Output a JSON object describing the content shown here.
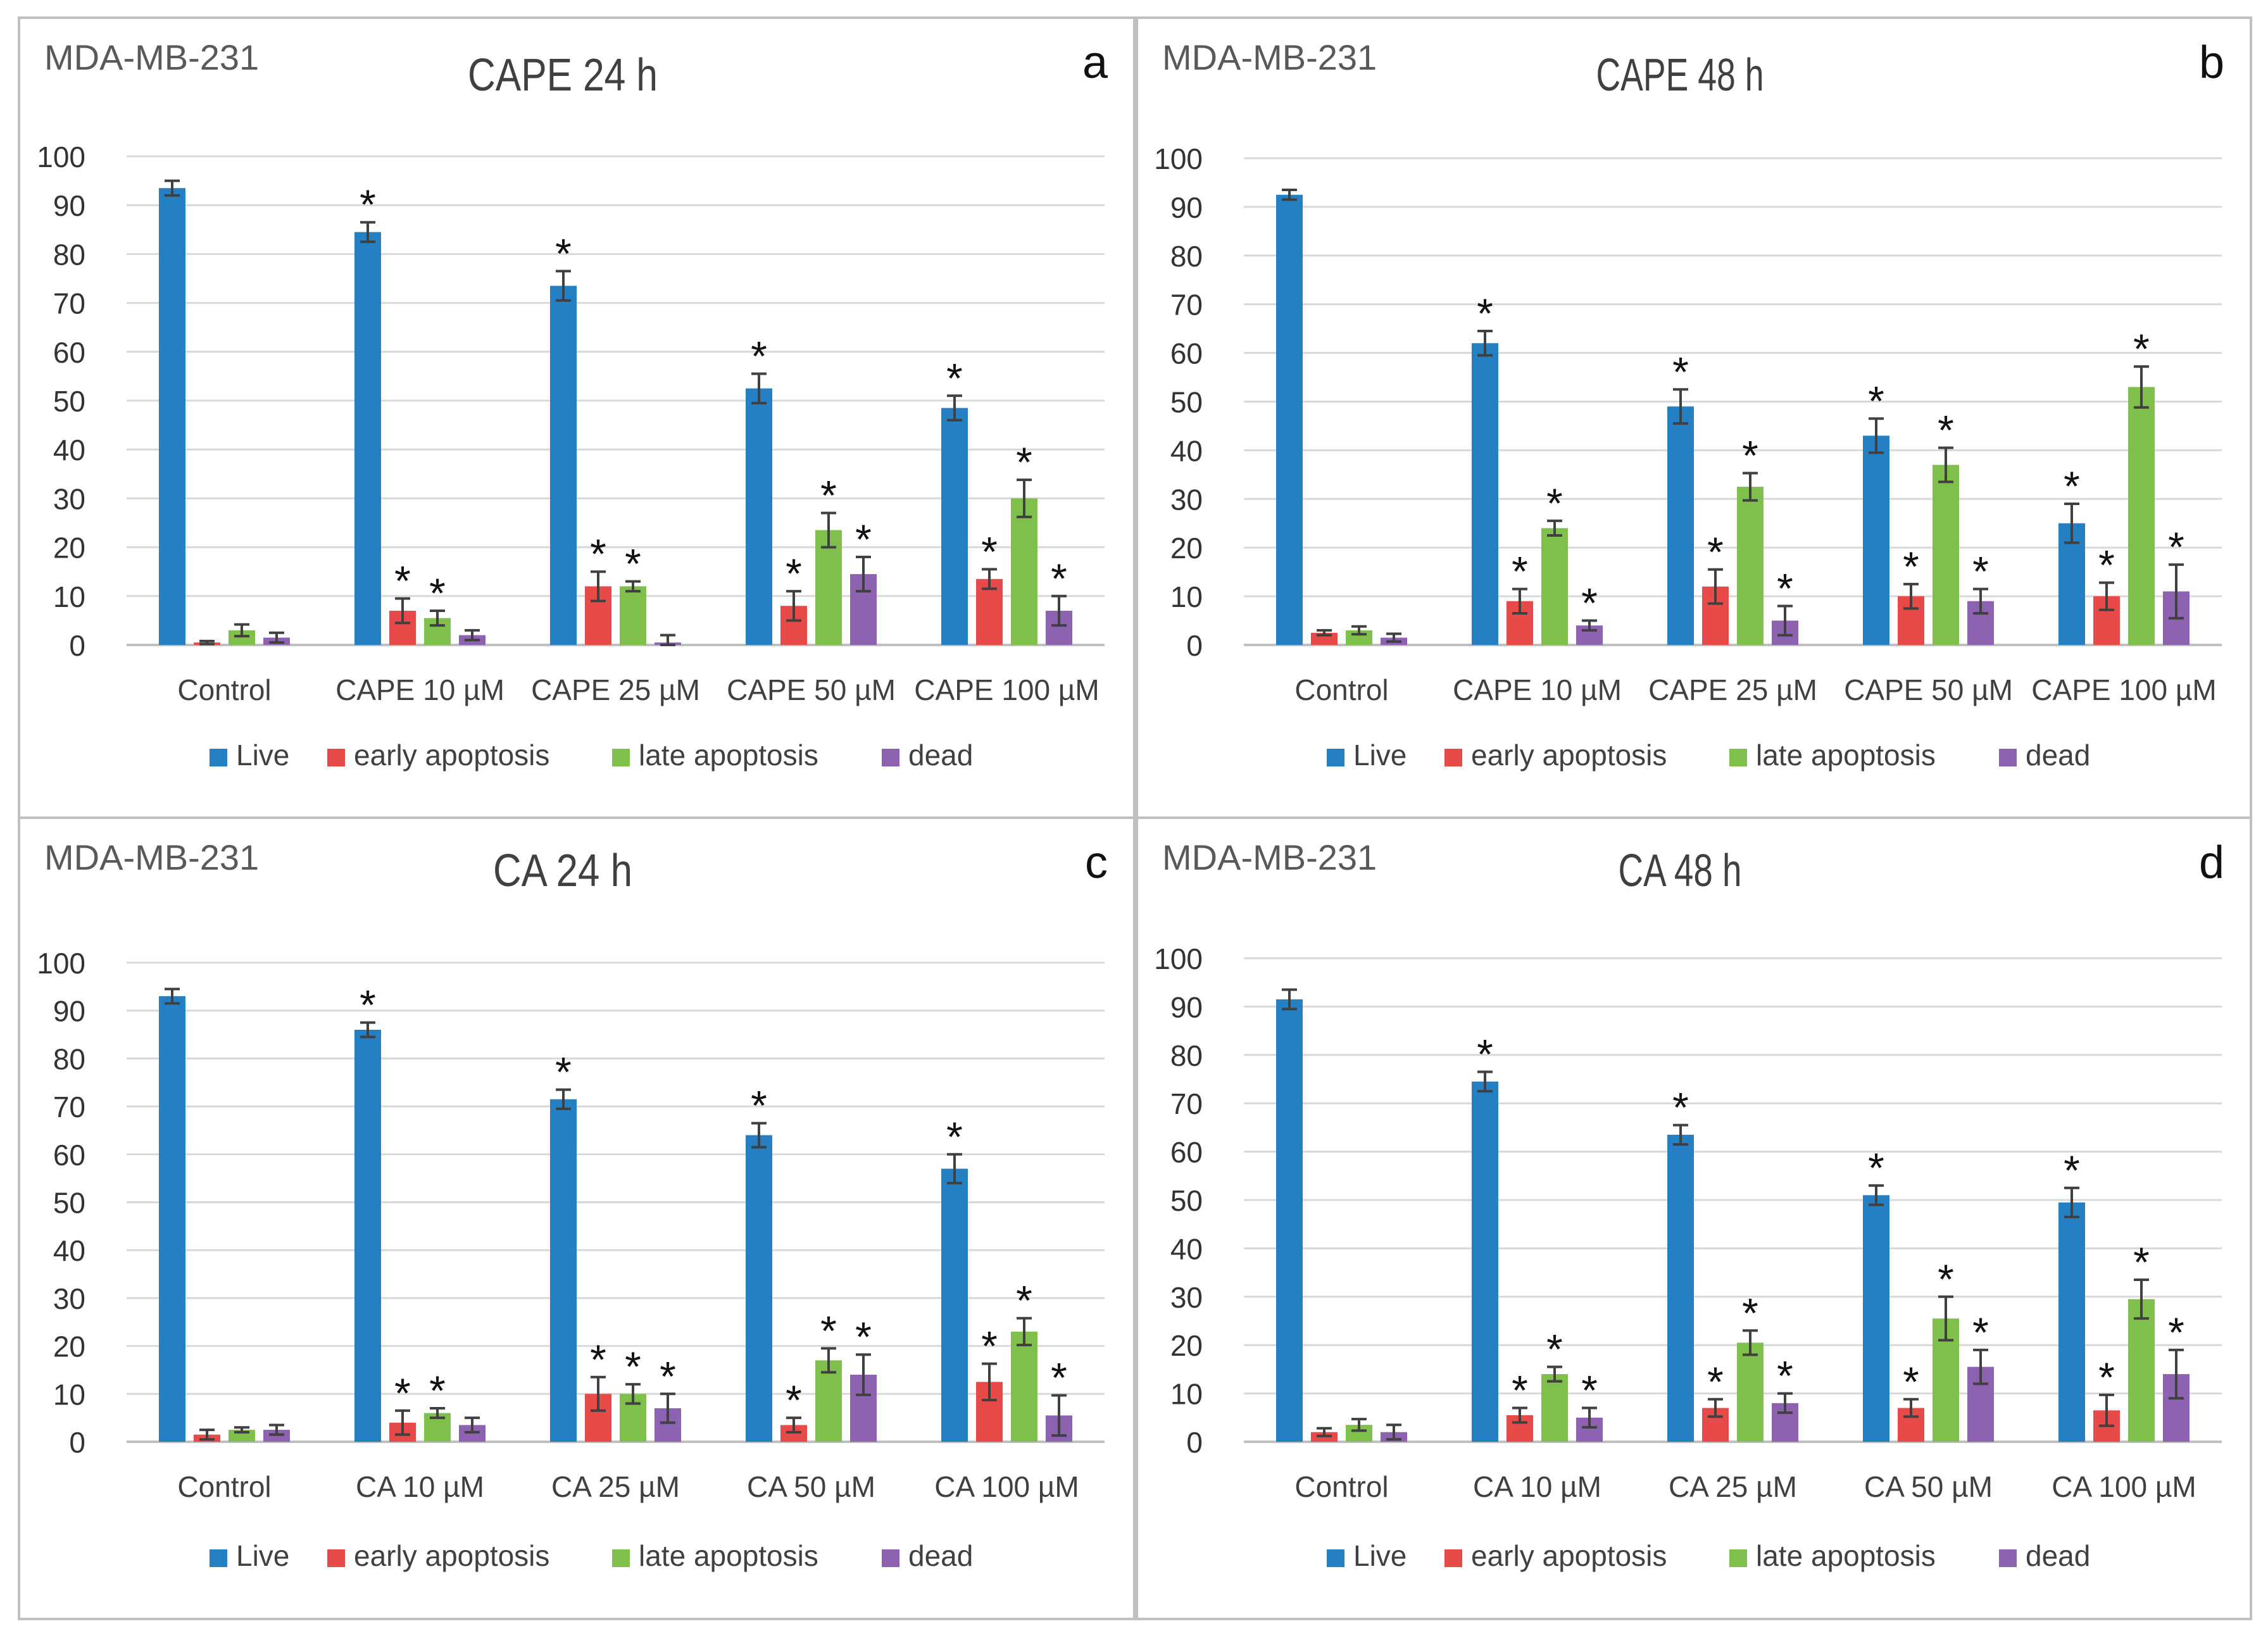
{
  "figure": {
    "panels": [
      {
        "cell_line": "MDA-MB-231",
        "title": "CAPE 24 h",
        "letter": "a"
      },
      {
        "cell_line": "MDA-MB-231",
        "title": "CAPE 48 h",
        "letter": "b"
      },
      {
        "cell_line": "MDA-MB-231",
        "title": "CA 24 h",
        "letter": "c"
      },
      {
        "cell_line": "MDA-MB-231",
        "title": "CA 48 h",
        "letter": "d"
      }
    ]
  },
  "colors": {
    "Live": "#2580C3",
    "early apoptosis": "#E84A4A",
    "late apoptosis": "#7FBF4C",
    "dead": "#8D62B0",
    "error_bar": "#404040",
    "grid": "#D9D9D9",
    "panel_border": "#BFBFBF",
    "text": "#595959",
    "asterisk": "#111111"
  },
  "chart_data": [
    {
      "type": "bar",
      "title": "CAPE 24 h",
      "cell_line": "MDA-MB-231",
      "panel": "a",
      "categories": [
        "Control",
        "CAPE 10 µM",
        "CAPE 25 µM",
        "CAPE 50 µM",
        "CAPE 100 µM"
      ],
      "ylim": [
        0,
        100
      ],
      "yticks": [
        0,
        10,
        20,
        30,
        40,
        50,
        60,
        70,
        80,
        90,
        100
      ],
      "legend_position": "bottom",
      "series": [
        {
          "name": "Live",
          "values": [
            93.5,
            84.5,
            73.5,
            52.5,
            48.5
          ],
          "errors": [
            1.5,
            2.0,
            3.0,
            3.0,
            2.5
          ],
          "significant": [
            false,
            true,
            true,
            true,
            true
          ]
        },
        {
          "name": "early apoptosis",
          "values": [
            0.5,
            7.0,
            12.0,
            8.0,
            13.5
          ],
          "errors": [
            0.3,
            2.5,
            3.0,
            3.0,
            2.0
          ],
          "significant": [
            false,
            true,
            true,
            true,
            true
          ]
        },
        {
          "name": "late apoptosis",
          "values": [
            3.0,
            5.5,
            12.0,
            23.5,
            30.0
          ],
          "errors": [
            1.2,
            1.5,
            1.0,
            3.5,
            3.8
          ],
          "significant": [
            false,
            true,
            true,
            true,
            true
          ]
        },
        {
          "name": "dead",
          "values": [
            1.5,
            2.0,
            0.5,
            14.5,
            7.0
          ],
          "errors": [
            1.0,
            1.0,
            1.5,
            3.5,
            3.0
          ],
          "significant": [
            false,
            false,
            false,
            true,
            true
          ]
        }
      ]
    },
    {
      "type": "bar",
      "title": "CAPE 48 h",
      "cell_line": "MDA-MB-231",
      "panel": "b",
      "categories": [
        "Control",
        "CAPE 10 µM",
        "CAPE 25 µM",
        "CAPE 50 µM",
        "CAPE 100 µM"
      ],
      "ylim": [
        0,
        100
      ],
      "yticks": [
        0,
        10,
        20,
        30,
        40,
        50,
        60,
        70,
        80,
        90,
        100
      ],
      "legend_position": "bottom",
      "series": [
        {
          "name": "Live",
          "values": [
            92.5,
            62.0,
            49.0,
            43.0,
            25.0
          ],
          "errors": [
            1.0,
            2.5,
            3.5,
            3.5,
            4.0
          ],
          "significant": [
            false,
            true,
            true,
            true,
            true
          ]
        },
        {
          "name": "early apoptosis",
          "values": [
            2.5,
            9.0,
            12.0,
            10.0,
            10.0
          ],
          "errors": [
            0.5,
            2.5,
            3.5,
            2.5,
            2.8
          ],
          "significant": [
            false,
            true,
            true,
            true,
            true
          ]
        },
        {
          "name": "late apoptosis",
          "values": [
            3.0,
            24.0,
            32.5,
            37.0,
            53.0
          ],
          "errors": [
            0.8,
            1.5,
            2.8,
            3.5,
            4.2
          ],
          "significant": [
            false,
            true,
            true,
            true,
            true
          ]
        },
        {
          "name": "dead",
          "values": [
            1.5,
            4.0,
            5.0,
            9.0,
            11.0
          ],
          "errors": [
            0.8,
            1.0,
            3.0,
            2.5,
            5.5
          ],
          "significant": [
            false,
            true,
            true,
            true,
            true
          ]
        }
      ]
    },
    {
      "type": "bar",
      "title": "CA 24 h",
      "cell_line": "MDA-MB-231",
      "panel": "c",
      "categories": [
        "Control",
        "CA 10 µM",
        "CA 25 µM",
        "CA 50 µM",
        "CA 100 µM"
      ],
      "ylim": [
        0,
        100
      ],
      "yticks": [
        0,
        10,
        20,
        30,
        40,
        50,
        60,
        70,
        80,
        90,
        100
      ],
      "legend_position": "bottom",
      "series": [
        {
          "name": "Live",
          "values": [
            93.0,
            86.0,
            71.5,
            64.0,
            57.0
          ],
          "errors": [
            1.5,
            1.5,
            2.0,
            2.5,
            3.0
          ],
          "significant": [
            false,
            true,
            true,
            true,
            true
          ]
        },
        {
          "name": "early apoptosis",
          "values": [
            1.5,
            4.0,
            10.0,
            3.5,
            12.5
          ],
          "errors": [
            1.0,
            2.5,
            3.5,
            1.5,
            3.8
          ],
          "significant": [
            false,
            true,
            true,
            true,
            true
          ]
        },
        {
          "name": "late apoptosis",
          "values": [
            2.5,
            6.0,
            10.0,
            17.0,
            23.0
          ],
          "errors": [
            0.5,
            1.0,
            2.0,
            2.5,
            2.8
          ],
          "significant": [
            false,
            true,
            true,
            true,
            true
          ]
        },
        {
          "name": "dead",
          "values": [
            2.5,
            3.5,
            7.0,
            14.0,
            5.5
          ],
          "errors": [
            1.0,
            1.5,
            3.0,
            4.2,
            4.2
          ],
          "significant": [
            false,
            false,
            true,
            true,
            true
          ]
        }
      ]
    },
    {
      "type": "bar",
      "title": "CA 48 h",
      "cell_line": "MDA-MB-231",
      "panel": "d",
      "categories": [
        "Control",
        "CA 10 µM",
        "CA 25 µM",
        "CA 50 µM",
        "CA 100 µM"
      ],
      "ylim": [
        0,
        100
      ],
      "yticks": [
        0,
        10,
        20,
        30,
        40,
        50,
        60,
        70,
        80,
        90,
        100
      ],
      "legend_position": "bottom",
      "series": [
        {
          "name": "Live",
          "values": [
            91.5,
            74.5,
            63.5,
            51.0,
            49.5
          ],
          "errors": [
            2.0,
            2.0,
            2.0,
            2.0,
            3.0
          ],
          "significant": [
            false,
            true,
            true,
            true,
            true
          ]
        },
        {
          "name": "early apoptosis",
          "values": [
            2.0,
            5.5,
            7.0,
            7.0,
            6.5
          ],
          "errors": [
            0.8,
            1.5,
            1.8,
            1.8,
            3.2
          ],
          "significant": [
            false,
            true,
            true,
            true,
            true
          ]
        },
        {
          "name": "late apoptosis",
          "values": [
            3.5,
            14.0,
            20.5,
            25.5,
            29.5
          ],
          "errors": [
            1.2,
            1.5,
            2.5,
            4.5,
            4.0
          ],
          "significant": [
            false,
            true,
            true,
            true,
            true
          ]
        },
        {
          "name": "dead",
          "values": [
            2.0,
            5.0,
            8.0,
            15.5,
            14.0
          ],
          "errors": [
            1.5,
            2.0,
            2.0,
            3.5,
            5.0
          ],
          "significant": [
            false,
            true,
            true,
            true,
            true
          ]
        }
      ]
    }
  ]
}
